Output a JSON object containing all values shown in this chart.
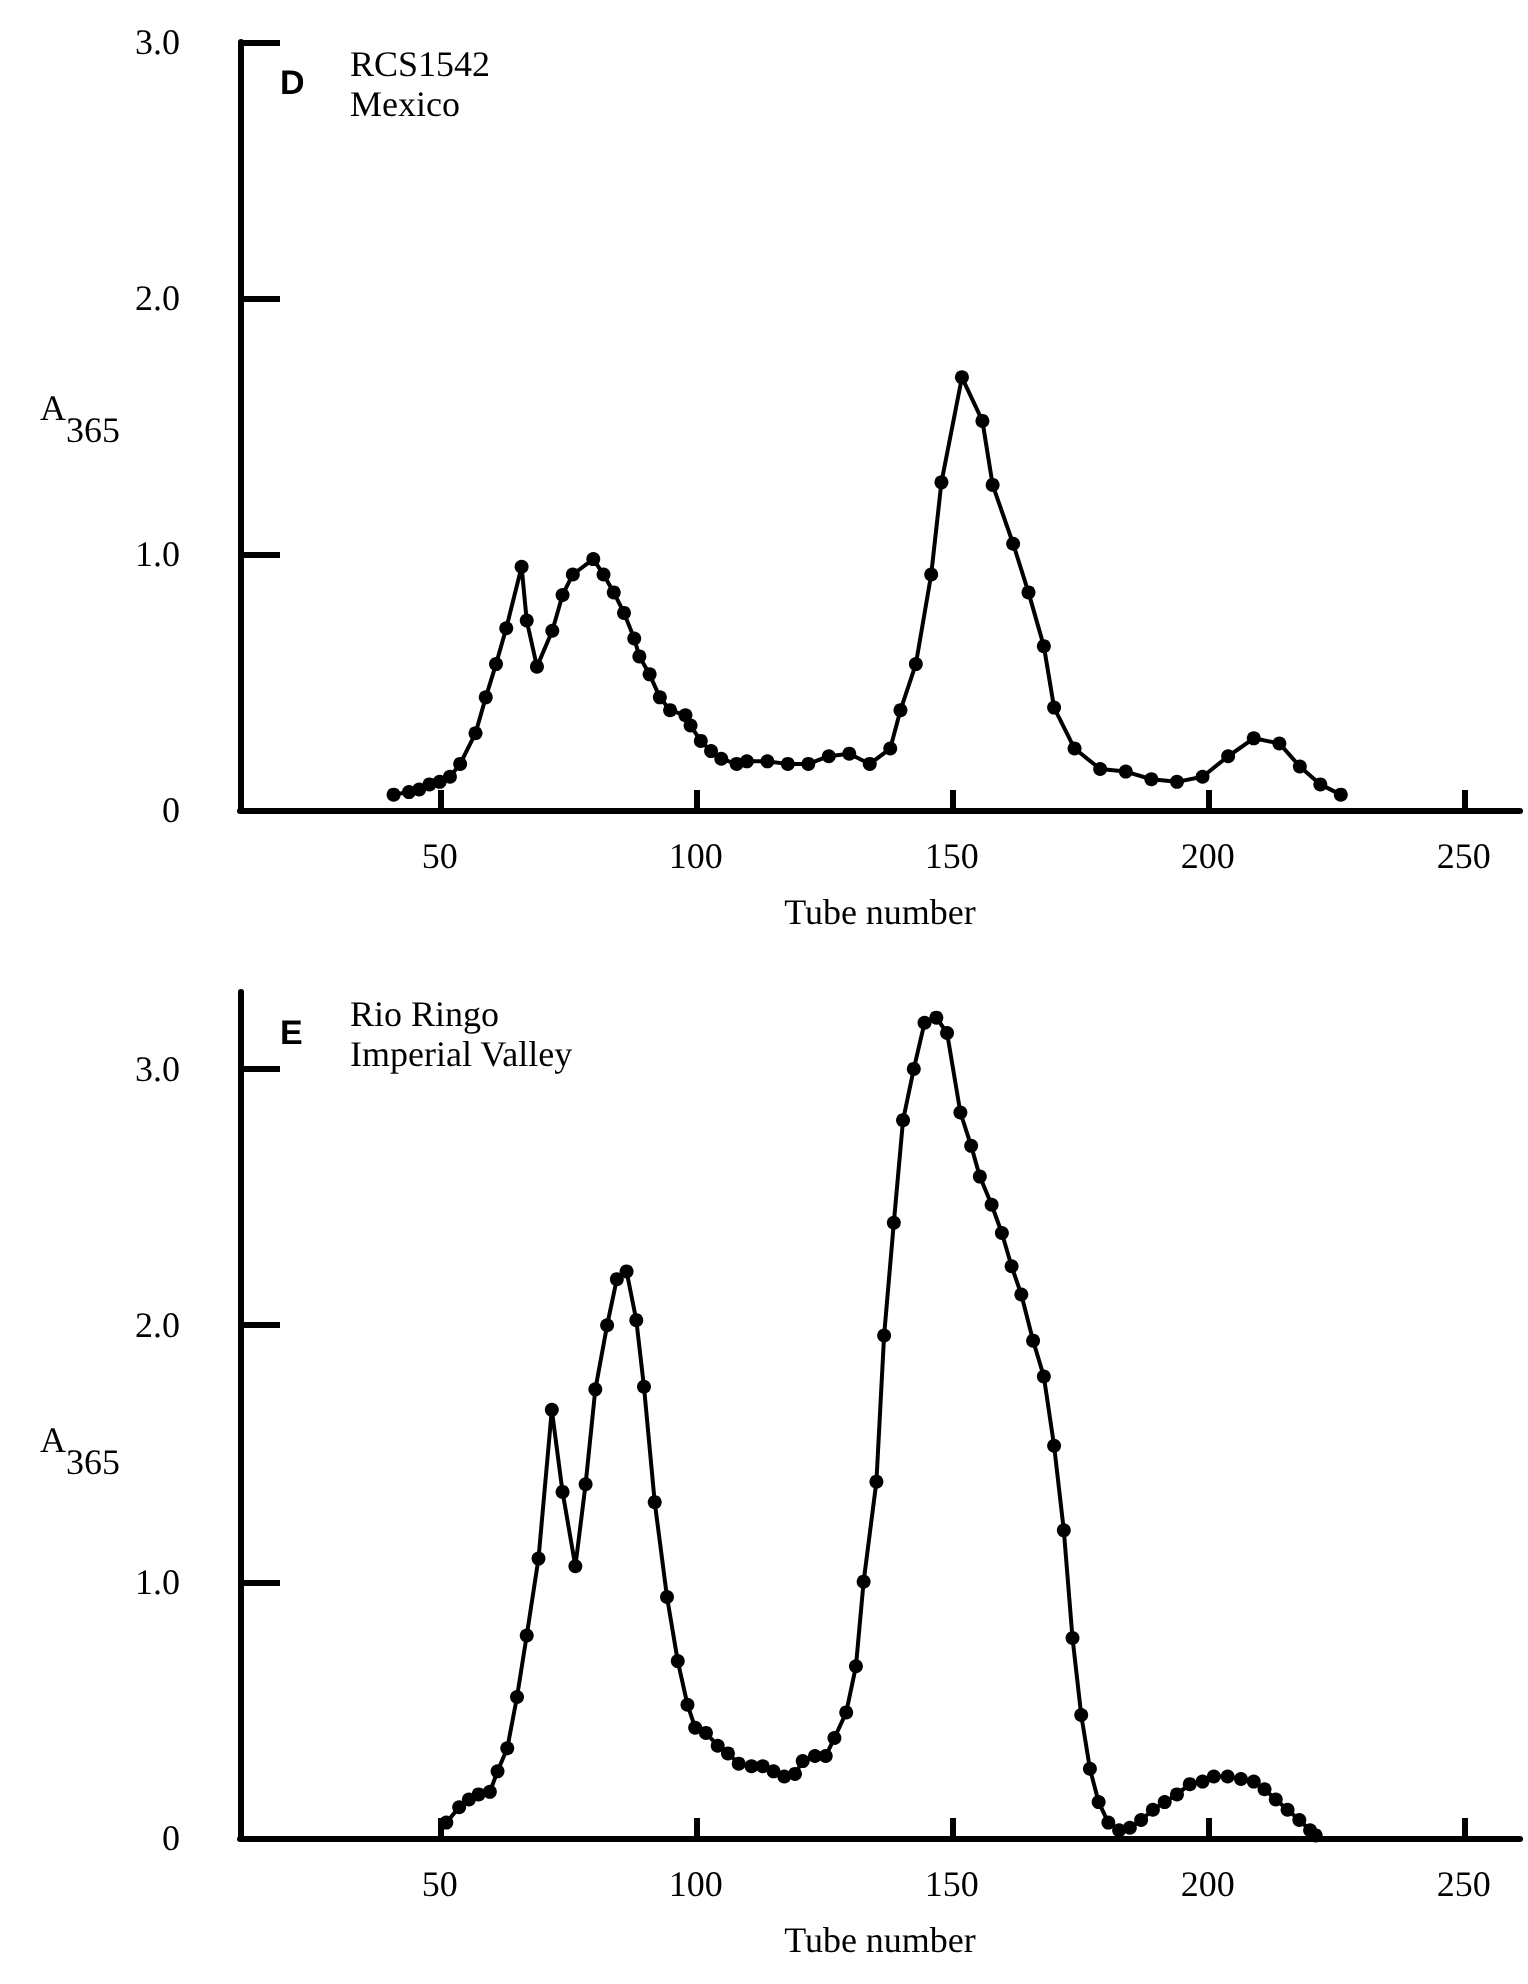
{
  "chart_data": [
    {
      "type": "line",
      "xlabel": "Tube number",
      "ylabel": "A$_{365}$",
      "annotations": [
        "D",
        "RCS1542",
        "Mexico"
      ],
      "x": [
        41,
        44,
        46,
        48,
        50,
        52,
        54,
        57,
        59,
        61,
        63,
        66,
        67,
        69,
        72,
        74,
        76,
        80,
        82,
        84,
        86,
        88,
        89,
        91,
        93,
        95,
        98,
        99,
        101,
        103,
        105,
        108,
        110,
        114,
        118,
        122,
        126,
        130,
        134,
        138,
        140,
        143,
        146,
        148,
        152,
        156,
        158,
        162,
        165,
        168,
        170,
        174,
        179,
        184,
        189,
        194,
        199,
        204,
        209,
        214,
        218,
        222,
        226
      ],
      "series": [
        {
          "color": "#000000",
          "values": [
            0.06,
            0.07,
            0.08,
            0.1,
            0.11,
            0.13,
            0.18,
            0.3,
            0.44,
            0.57,
            0.71,
            0.95,
            0.74,
            0.56,
            0.7,
            0.84,
            0.92,
            0.98,
            0.92,
            0.85,
            0.77,
            0.67,
            0.6,
            0.53,
            0.44,
            0.39,
            0.37,
            0.33,
            0.27,
            0.23,
            0.2,
            0.18,
            0.19,
            0.19,
            0.18,
            0.18,
            0.21,
            0.22,
            0.18,
            0.24,
            0.39,
            0.57,
            0.92,
            1.28,
            1.69,
            1.52,
            1.27,
            1.04,
            0.85,
            0.64,
            0.4,
            0.24,
            0.16,
            0.15,
            0.12,
            0.11,
            0.13,
            0.21,
            0.28,
            0.26,
            0.17,
            0.1,
            0.06
          ]
        }
      ],
      "xlim": [
        11,
        261
      ],
      "xticks": [
        50,
        100,
        150,
        200,
        250
      ],
      "ylim": [
        0,
        3
      ],
      "yticks": [
        0,
        {
          "value": 1,
          "label": "1.0"
        },
        {
          "value": 2,
          "label": "2.0"
        },
        {
          "value": 3,
          "label": "3.0"
        }
      ],
      "marker": "circle",
      "line_style": "solid"
    },
    {
      "type": "line",
      "xlabel": "Tube number",
      "ylabel": "A$_{365}$",
      "annotations": [
        "E",
        "Rio Ringo",
        "Imperial Valley"
      ],
      "x": [
        51.3,
        53.8,
        55.7,
        57.6,
        59.8,
        61.3,
        63.2,
        65.1,
        67,
        69.3,
        71.9,
        74,
        76.5,
        78.5,
        80.4,
        82.7,
        84.6,
        86.5,
        88.4,
        89.9,
        92,
        94.4,
        96.5,
        98.4,
        99.9,
        102,
        104.3,
        106.3,
        108.4,
        110.9,
        113.1,
        115.2,
        117.3,
        119.4,
        120.9,
        123.3,
        125.4,
        127.1,
        129.4,
        131.3,
        132.8,
        135.3,
        136.8,
        138.7,
        140.5,
        142.6,
        144.7,
        147,
        149.1,
        151.7,
        153.8,
        155.5,
        157.8,
        159.8,
        161.7,
        163.6,
        165.9,
        168,
        170,
        171.9,
        173.6,
        175.3,
        177,
        178.7,
        180.6,
        182.7,
        184.8,
        187,
        189.3,
        191.6,
        194,
        196.5,
        199,
        201.2,
        203.9,
        206.5,
        209,
        211.1,
        213.3,
        215.6,
        217.9,
        220,
        221.1
      ],
      "series": [
        {
          "color": "#000000",
          "values": [
            0.06,
            0.12,
            0.15,
            0.17,
            0.18,
            0.26,
            0.35,
            0.55,
            0.79,
            1.09,
            1.67,
            1.35,
            1.06,
            1.38,
            1.75,
            2.0,
            2.18,
            2.21,
            2.02,
            1.76,
            1.31,
            0.94,
            0.69,
            0.52,
            0.43,
            0.41,
            0.36,
            0.33,
            0.29,
            0.28,
            0.28,
            0.26,
            0.24,
            0.25,
            0.3,
            0.32,
            0.32,
            0.39,
            0.49,
            0.67,
            1.0,
            1.39,
            1.96,
            2.4,
            2.8,
            3.0,
            3.18,
            3.2,
            3.14,
            2.83,
            2.7,
            2.58,
            2.47,
            2.36,
            2.23,
            2.12,
            1.94,
            1.8,
            1.53,
            1.2,
            0.78,
            0.48,
            0.27,
            0.14,
            0.06,
            0.03,
            0.04,
            0.07,
            0.11,
            0.14,
            0.17,
            0.21,
            0.22,
            0.24,
            0.24,
            0.23,
            0.22,
            0.19,
            0.15,
            0.11,
            0.07,
            0.03,
            0.01
          ]
        }
      ],
      "xlim": [
        11,
        261
      ],
      "xticks": [
        50,
        100,
        150,
        200,
        250
      ],
      "ylim": [
        0,
        3.3
      ],
      "yticks": [
        0,
        {
          "value": 1,
          "label": "1.0"
        },
        {
          "value": 2,
          "label": "2.0"
        },
        {
          "value": 3,
          "label": "3.0"
        }
      ],
      "marker": "circle",
      "line_style": "solid"
    }
  ]
}
